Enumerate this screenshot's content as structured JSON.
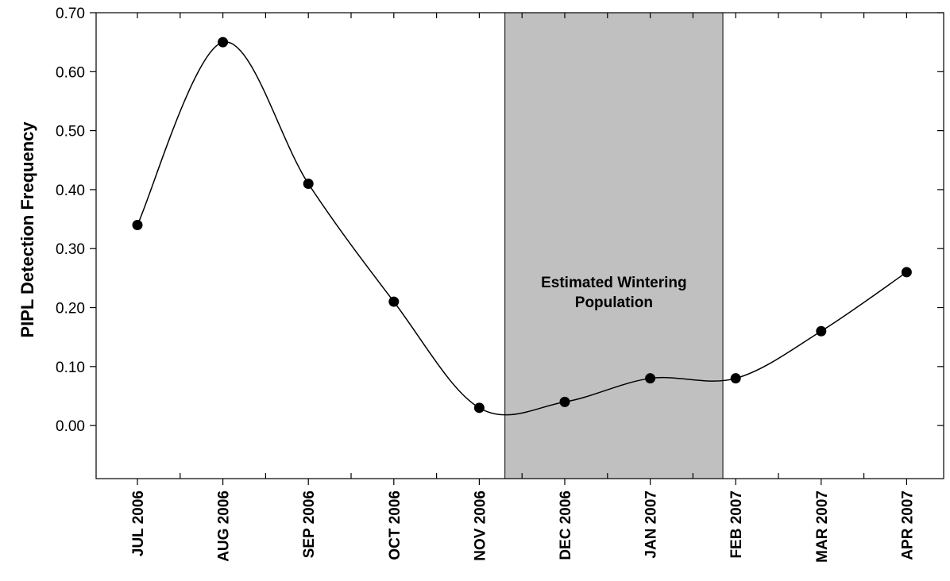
{
  "chart_data": {
    "type": "line",
    "title": "",
    "xlabel": "",
    "ylabel": "PIPL Detection Frequency",
    "categories": [
      "JUL 2006",
      "AUG 2006",
      "SEP 2006",
      "OCT 2006",
      "NOV 2006",
      "DEC 2006",
      "JAN 2007",
      "FEB 2007",
      "MAR 2007",
      "APR 2007"
    ],
    "series": [
      {
        "values": [
          0.34,
          0.65,
          0.41,
          0.21,
          0.03,
          0.04,
          0.08,
          0.08,
          0.16,
          0.26
        ]
      }
    ],
    "ylim": [
      -0.09,
      0.7
    ],
    "yticks": [
      "0.00",
      "0.10",
      "0.20",
      "0.30",
      "0.40",
      "0.50",
      "0.60",
      "0.70"
    ],
    "ytick_values": [
      0.0,
      0.1,
      0.2,
      0.3,
      0.4,
      0.5,
      0.6,
      0.7
    ],
    "grid": false,
    "line_style": "smooth",
    "band": {
      "label_line1": "Estimated Wintering",
      "label_line2": "Population",
      "x_start_category_index": 4.3,
      "x_end_category_index": 6.85,
      "color": "#c0c0c0"
    },
    "colors": {
      "line": "#000000",
      "marker": "#000000",
      "band": "#c0c0c0"
    }
  }
}
